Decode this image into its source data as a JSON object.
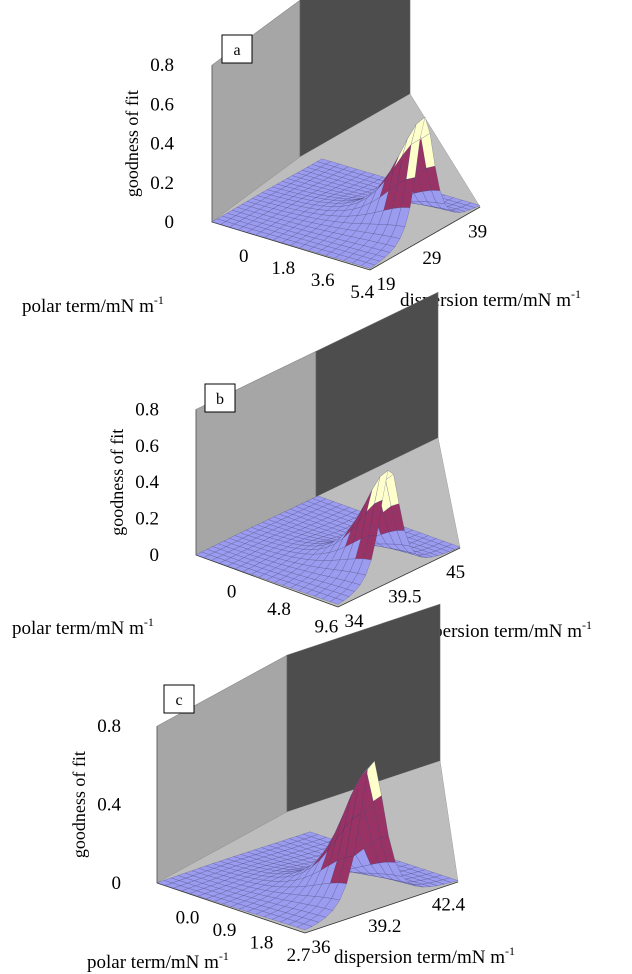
{
  "chart_data": [
    {
      "type": "surface",
      "panel_label": "a",
      "zlabel": "goodness of fit",
      "xlabel": "polar term/mN m",
      "xlabel_sup": "-1",
      "ylabel": "dispersion term/mN m",
      "ylabel_sup": "-1",
      "z_ticks": [
        "0",
        "0.2",
        "0.4",
        "0.6",
        "0.8"
      ],
      "z_tick_values": [
        0,
        0.2,
        0.4,
        0.6,
        0.8
      ],
      "zlim": [
        0,
        0.8
      ],
      "x_ticks": [
        "0",
        "1.8",
        "3.6",
        "5.4"
      ],
      "y_ticks": [
        "19",
        "29",
        "39"
      ],
      "xlim": [
        0,
        5.4
      ],
      "ylim": [
        19,
        49
      ],
      "peak": {
        "x": 5.4,
        "y": 34,
        "z": 0.62
      },
      "band_colors": [
        "#9b9bf0",
        "#993366",
        "#ffffcc",
        "#ccecff"
      ],
      "band_breaks": [
        0,
        0.2,
        0.4,
        0.6,
        0.8
      ]
    },
    {
      "type": "surface",
      "panel_label": "b",
      "zlabel": "goodness of fit",
      "xlabel": "polar term/mN m",
      "xlabel_sup": "-1",
      "ylabel": "dispersion term/mN m",
      "ylabel_sup": "-1",
      "z_ticks": [
        "0",
        "0.2",
        "0.4",
        "0.6",
        "0.8"
      ],
      "z_tick_values": [
        0,
        0.2,
        0.4,
        0.6,
        0.8
      ],
      "zlim": [
        0,
        0.8
      ],
      "x_ticks": [
        "0",
        "4.8",
        "9.6"
      ],
      "y_ticks": [
        "34",
        "39.5",
        "45"
      ],
      "xlim": [
        0,
        14.4
      ],
      "ylim": [
        34,
        50.5
      ],
      "peak": {
        "x": 14.4,
        "y": 41.0,
        "z": 0.63
      },
      "band_colors": [
        "#9b9bf0",
        "#993366",
        "#ffffcc",
        "#ccecff"
      ],
      "band_breaks": [
        0,
        0.2,
        0.4,
        0.6,
        0.8
      ]
    },
    {
      "type": "surface",
      "panel_label": "c",
      "zlabel": "goodness of fit",
      "xlabel": "polar term/mN m",
      "xlabel_sup": "-1",
      "ylabel": "dispersion term/mN m",
      "ylabel_sup": "-1",
      "z_ticks": [
        "0",
        "0.4",
        "0.8"
      ],
      "z_tick_values": [
        0,
        0.4,
        0.8
      ],
      "zlim": [
        0,
        0.8
      ],
      "x_ticks": [
        "0.0",
        "0.9",
        "1.8",
        "2.7"
      ],
      "y_ticks": [
        "36",
        "39.2",
        "42.4"
      ],
      "xlim": [
        0,
        3.6
      ],
      "ylim": [
        36,
        45.6
      ],
      "peak": {
        "x": 3.6,
        "y": 40.2,
        "z": 0.78
      },
      "band_colors": [
        "#9b9bf0",
        "#993366",
        "#ffffcc",
        "#ccecff"
      ],
      "band_breaks": [
        0,
        0.2,
        0.6,
        0.7,
        0.8
      ]
    }
  ]
}
